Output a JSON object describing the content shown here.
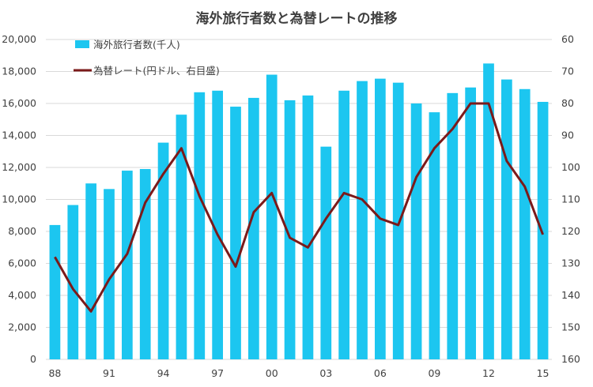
{
  "chart_data": {
    "type": "bar",
    "title": "海外旅行者数と為替レートの推移",
    "years": [
      "88",
      "89",
      "90",
      "91",
      "92",
      "93",
      "94",
      "95",
      "96",
      "97",
      "98",
      "99",
      "00",
      "01",
      "02",
      "03",
      "04",
      "05",
      "06",
      "07",
      "08",
      "09",
      "10",
      "11",
      "12",
      "13",
      "14",
      "15"
    ],
    "x_tick_labels": [
      "88",
      "91",
      "94",
      "97",
      "00",
      "03",
      "06",
      "09",
      "12",
      "15"
    ],
    "series": [
      {
        "name": "海外旅行者数(千人)",
        "type": "bar",
        "axis": "left",
        "color": "#1cc6f0",
        "values": [
          8400,
          9650,
          11000,
          10650,
          11800,
          11900,
          13550,
          15300,
          16700,
          16800,
          15800,
          16350,
          17800,
          16200,
          16500,
          13300,
          16800,
          17400,
          17550,
          17300,
          16000,
          15450,
          16650,
          17000,
          18500,
          17500,
          16900,
          16100
        ]
      },
      {
        "name": "為替レート(円ドル、右目盛)",
        "type": "line",
        "axis": "right",
        "color": "#7b1a1a",
        "values": [
          128,
          138,
          145,
          135,
          127,
          111,
          102,
          94,
          109,
          121,
          131,
          114,
          108,
          122,
          125,
          116,
          108,
          110,
          116,
          118,
          103,
          94,
          88,
          80,
          80,
          98,
          106,
          121
        ]
      }
    ],
    "y_left": {
      "min": 0,
      "max": 20000,
      "step": 2000,
      "tick_labels": [
        "0",
        "2,000",
        "4,000",
        "6,000",
        "8,000",
        "10,000",
        "12,000",
        "14,000",
        "16,000",
        "18,000",
        "20,000"
      ]
    },
    "y_right": {
      "min": 60,
      "max": 160,
      "step": 10,
      "reversed": true,
      "tick_labels": [
        "60",
        "70",
        "80",
        "90",
        "100",
        "110",
        "120",
        "130",
        "140",
        "150",
        "160"
      ]
    },
    "legend_position": "top-left",
    "grid": true
  }
}
